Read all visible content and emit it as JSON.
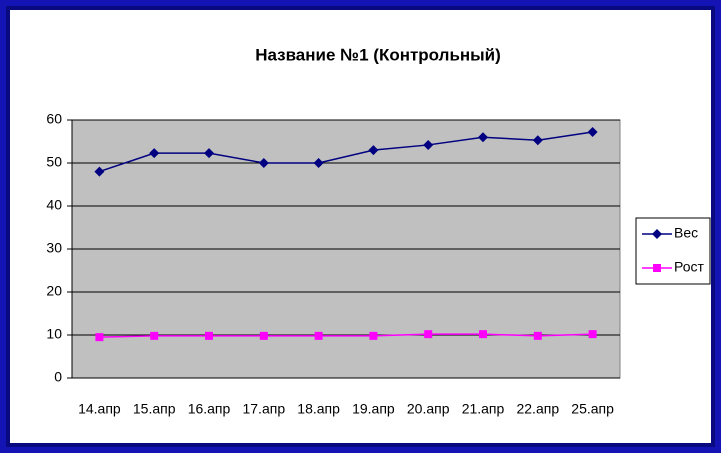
{
  "chart_data": {
    "type": "line",
    "title": "Название №1 (Контрольный)",
    "categories": [
      "14.апр",
      "15.апр",
      "16.апр",
      "17.апр",
      "18.апр",
      "19.апр",
      "20.апр",
      "21.апр",
      "22.апр",
      "25.апр"
    ],
    "series": [
      {
        "name": "Вес",
        "color": "#000080",
        "marker": "diamond",
        "values": [
          48,
          52.3,
          52.3,
          50,
          50,
          53,
          54.2,
          56,
          55.3,
          57.2
        ]
      },
      {
        "name": "Рост",
        "color": "#ff00ff",
        "marker": "square",
        "values": [
          9.5,
          9.8,
          9.8,
          9.8,
          9.8,
          9.8,
          10.2,
          10.2,
          9.8,
          10.2
        ]
      }
    ],
    "ylim": [
      0,
      60
    ],
    "yticks": [
      0,
      10,
      20,
      30,
      40,
      50,
      60
    ],
    "grid": true,
    "legend": "right"
  }
}
